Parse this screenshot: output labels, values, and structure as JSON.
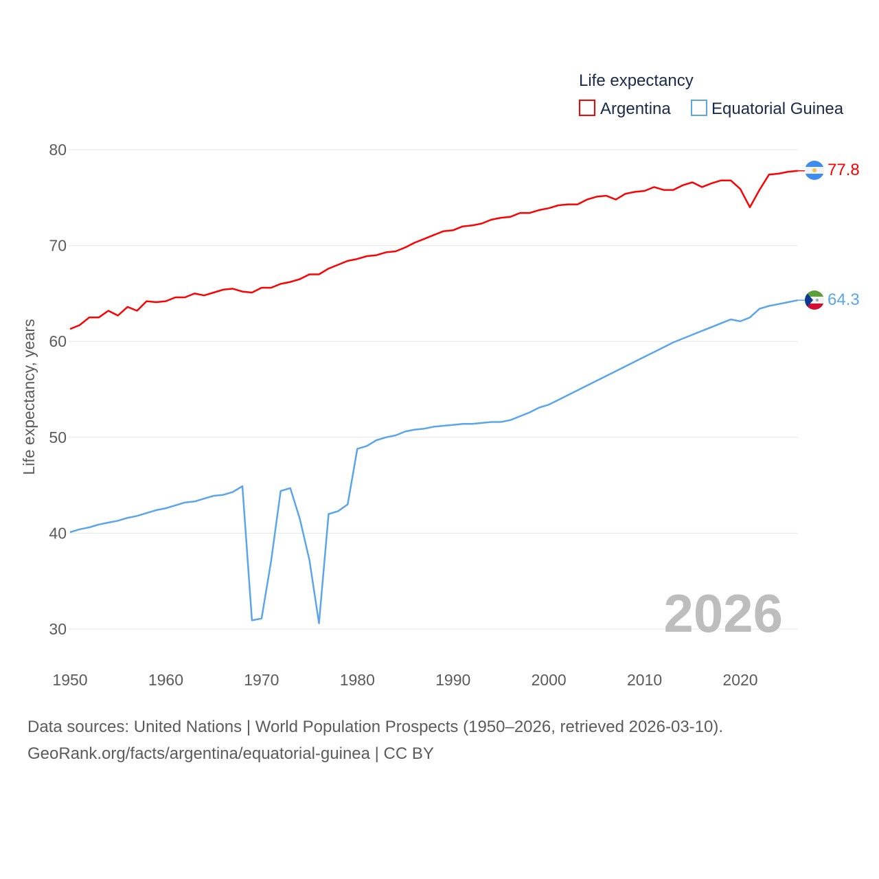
{
  "chart_data": {
    "type": "line",
    "legend_title": "Life expectancy",
    "legend_position": "top-right",
    "ylabel": "Life expectancy, years",
    "xlabel": "",
    "ylim": [
      30,
      80
    ],
    "xlim": [
      1950,
      2026
    ],
    "yticks": [
      "30",
      "40",
      "50",
      "60",
      "70",
      "80"
    ],
    "xticks": [
      "1950",
      "1960",
      "1970",
      "1980",
      "1990",
      "2000",
      "2010",
      "2020"
    ],
    "grid": true,
    "year_watermark": "2026",
    "x_start": 1950,
    "series": [
      {
        "name": "Argentina",
        "color": "#ff0000",
        "end_label": "77.8",
        "values": [
          61.3,
          61.7,
          62.5,
          62.5,
          63.2,
          62.7,
          63.6,
          63.2,
          64.2,
          64.1,
          64.2,
          64.6,
          64.6,
          65.0,
          64.8,
          65.1,
          65.4,
          65.5,
          65.2,
          65.1,
          65.6,
          65.6,
          66.0,
          66.2,
          66.5,
          67.0,
          67.0,
          67.6,
          68.0,
          68.4,
          68.6,
          68.9,
          69.0,
          69.3,
          69.4,
          69.8,
          70.3,
          70.7,
          71.1,
          71.5,
          71.6,
          72.0,
          72.1,
          72.3,
          72.7,
          72.9,
          73.0,
          73.4,
          73.4,
          73.7,
          73.9,
          74.2,
          74.3,
          74.3,
          74.8,
          75.1,
          75.2,
          74.8,
          75.4,
          75.6,
          75.7,
          76.1,
          75.8,
          75.8,
          76.3,
          76.6,
          76.1,
          76.5,
          76.8,
          76.8,
          75.9,
          74.0,
          75.8,
          77.4,
          77.5,
          77.7,
          77.8
        ]
      },
      {
        "name": "Equatorial Guinea",
        "color": "#5aa5eb",
        "end_label": "64.3",
        "values": [
          40.1,
          40.4,
          40.6,
          40.9,
          41.1,
          41.3,
          41.6,
          41.8,
          42.1,
          42.4,
          42.6,
          42.9,
          43.2,
          43.3,
          43.6,
          43.9,
          44.0,
          44.3,
          44.9,
          30.9,
          31.1,
          37.1,
          44.4,
          44.7,
          41.5,
          37.2,
          30.6,
          42.0,
          42.3,
          43.0,
          48.8,
          49.1,
          49.7,
          50.0,
          50.2,
          50.6,
          50.8,
          50.9,
          51.1,
          51.2,
          51.3,
          51.4,
          51.4,
          51.5,
          51.6,
          51.6,
          51.8,
          52.2,
          52.6,
          53.1,
          53.4,
          53.9,
          54.4,
          54.9,
          55.4,
          55.9,
          56.4,
          56.9,
          57.4,
          57.9,
          58.4,
          58.9,
          59.4,
          59.9,
          60.3,
          60.7,
          61.1,
          61.5,
          61.9,
          62.3,
          62.1,
          62.5,
          63.4,
          63.7,
          63.9,
          64.1,
          64.3
        ]
      }
    ]
  },
  "footer": {
    "line1": "Data sources: United Nations | World Population Prospects (1950–2026, retrieved 2026-03-10).",
    "line2": "GeoRank.org/facts/argentina/equatorial-guinea | CC BY"
  }
}
